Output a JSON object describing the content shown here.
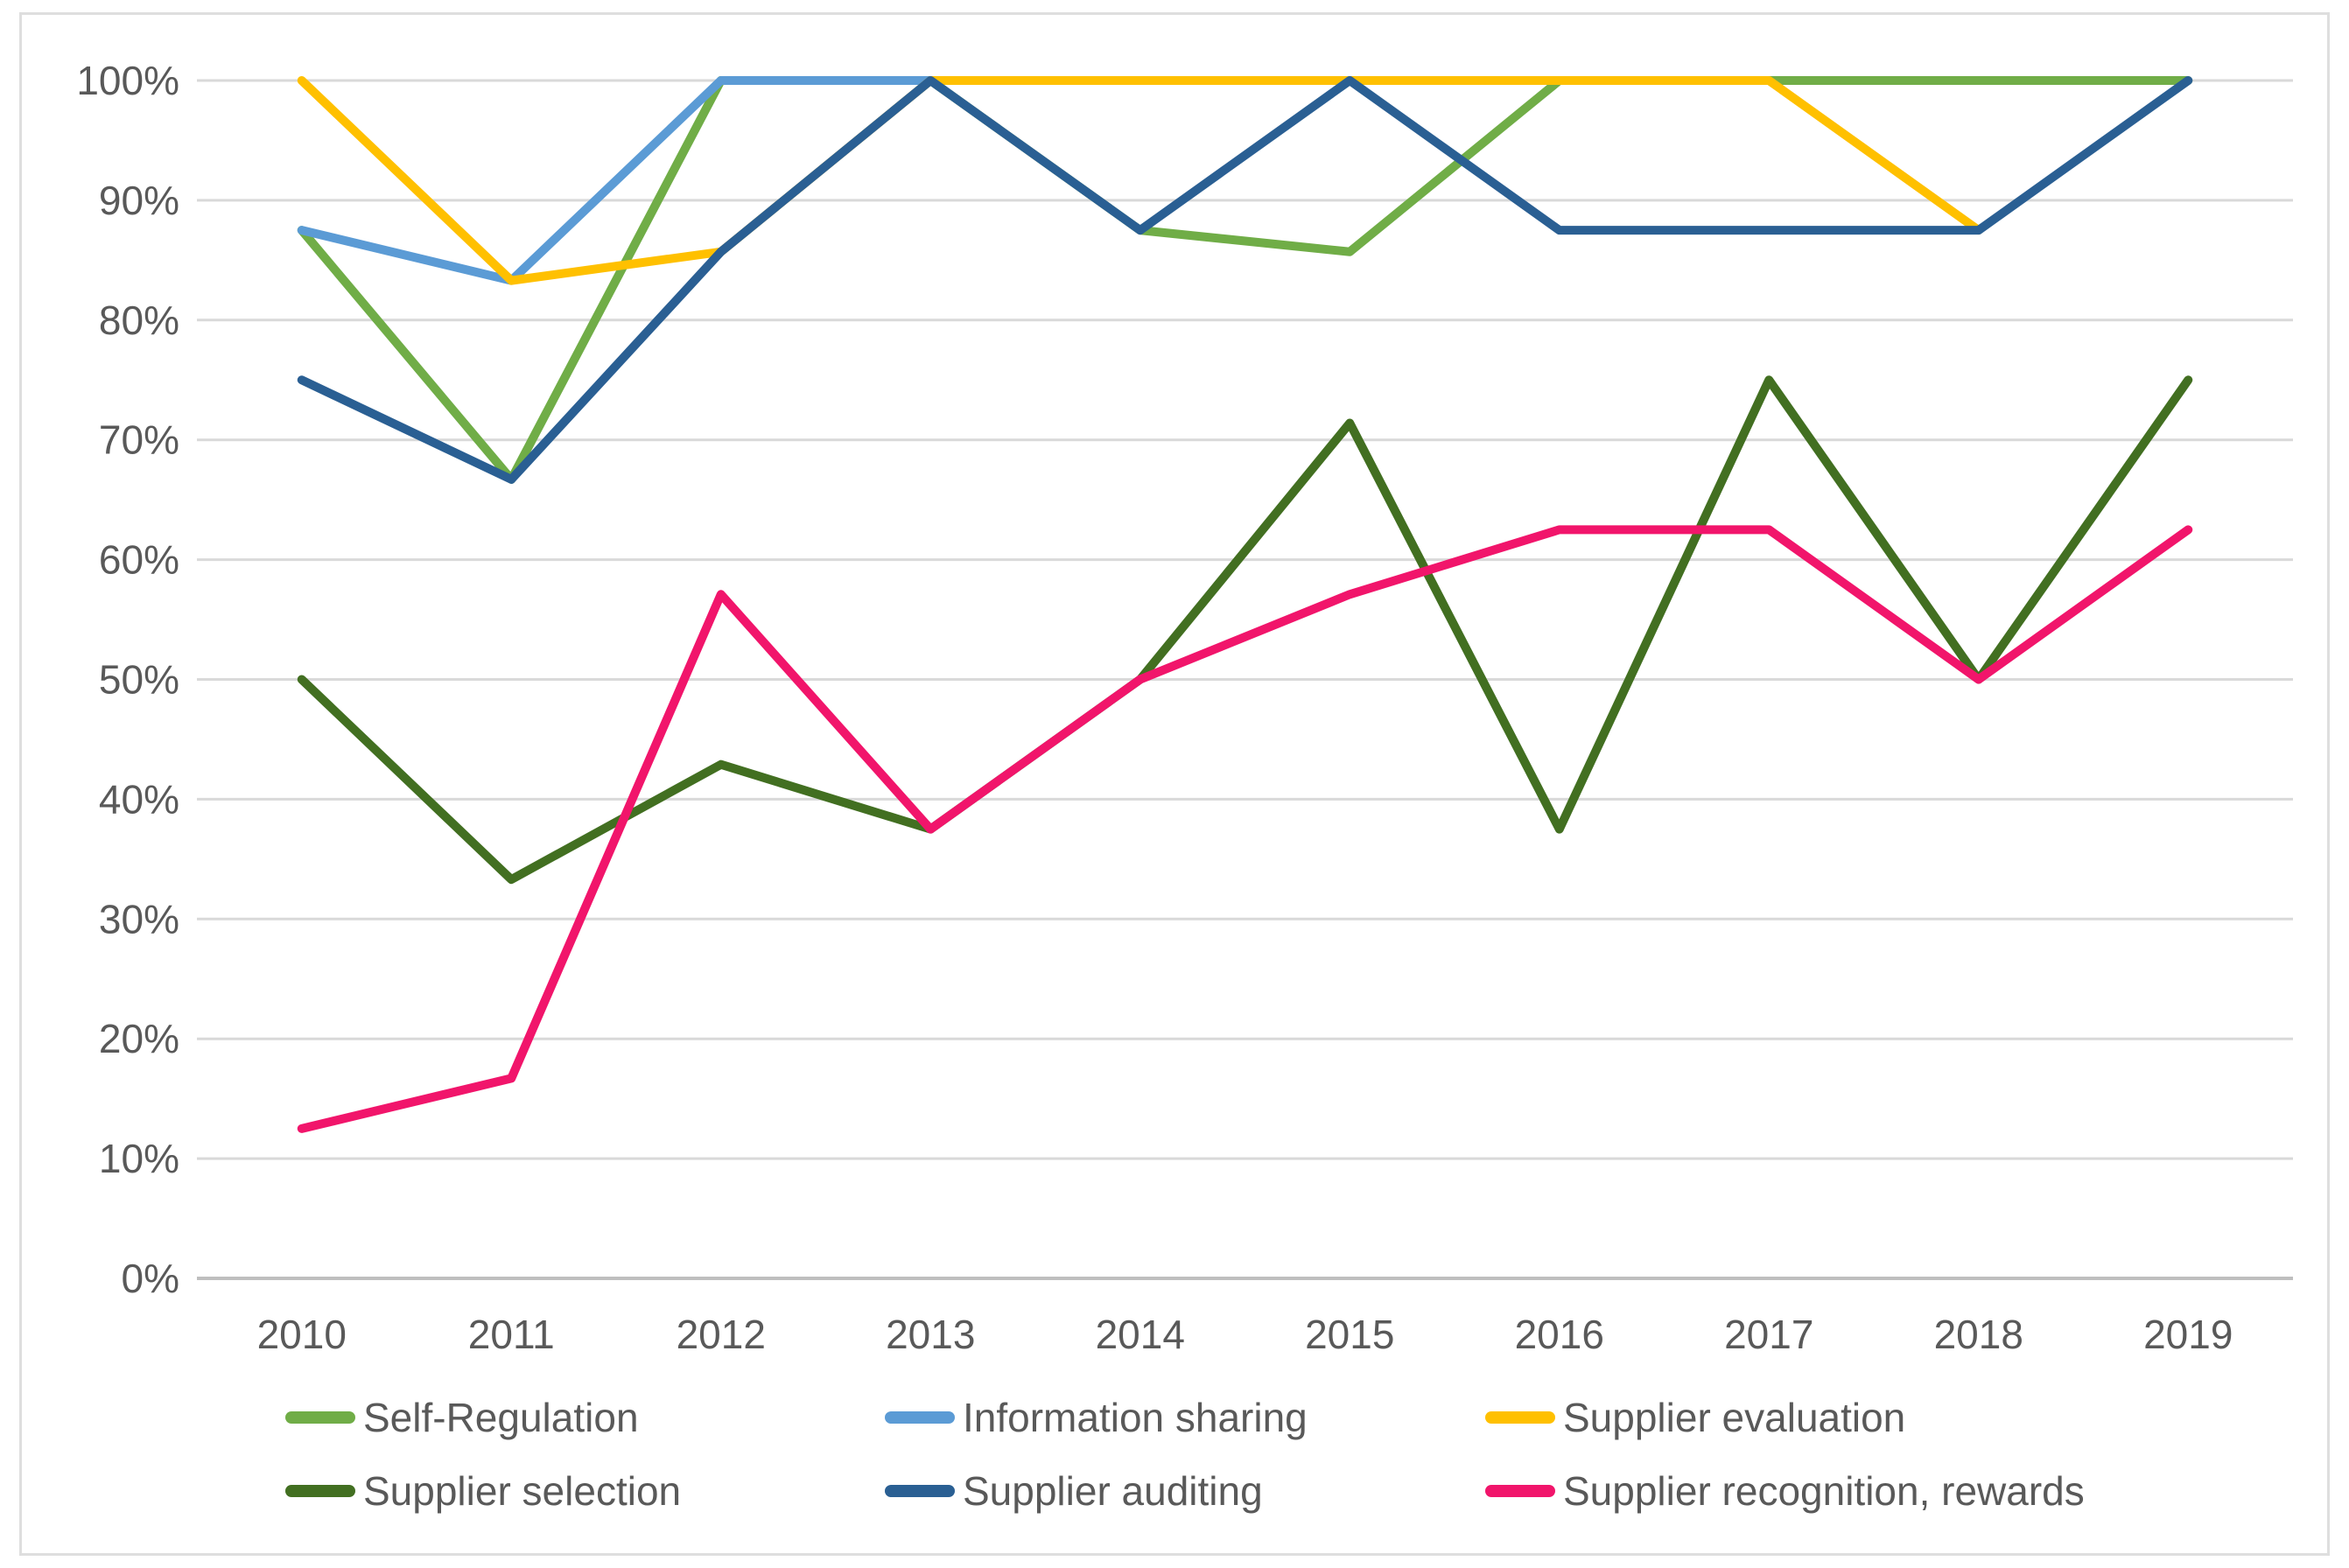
{
  "chart": {
    "background_color": "#FFFFFF",
    "frame_border_color": "#DEDEDE",
    "gridline_color": "#D9D9D9",
    "axis_line_color": "#BFBFBF",
    "text_color": "#595959"
  },
  "y_axis": {
    "tick_labels": [
      "100%",
      "90%",
      "80%",
      "70%",
      "60%",
      "50%",
      "40%",
      "30%",
      "20%",
      "10%",
      "0%"
    ]
  },
  "x_axis": {
    "tick_labels": [
      "2010",
      "2011",
      "2012",
      "2013",
      "2014",
      "2015",
      "2016",
      "2017",
      "2018",
      "2019"
    ]
  },
  "legend": {
    "position": "bottom",
    "rows": 2,
    "columns": 3
  },
  "chart_data": {
    "type": "line",
    "title": "",
    "xlabel": "",
    "ylabel": "",
    "x": [
      2010,
      2011,
      2012,
      2013,
      2014,
      2015,
      2016,
      2017,
      2018,
      2019
    ],
    "ylim": [
      0,
      100
    ],
    "y_unit": "percent",
    "grid": "horizontal",
    "legend_position": "bottom",
    "series": [
      {
        "name": "Self-Regulation",
        "color": "#70AD47",
        "values": [
          87.5,
          66.7,
          100,
          100,
          87.5,
          85.7,
          100,
          100,
          100,
          100
        ]
      },
      {
        "name": "Information sharing",
        "color": "#5B9BD5",
        "values": [
          87.5,
          83.3,
          100,
          100,
          null,
          null,
          null,
          null,
          null,
          null
        ]
      },
      {
        "name": "Supplier evaluation",
        "color": "#FFC000",
        "values": [
          100,
          83.3,
          85.7,
          100,
          100,
          100,
          100,
          100,
          87.5,
          null
        ]
      },
      {
        "name": "Supplier selection",
        "color": "#426F21",
        "values": [
          50,
          33.3,
          42.9,
          37.5,
          50,
          71.4,
          37.5,
          75,
          50,
          75
        ]
      },
      {
        "name": "Supplier auditing",
        "color": "#2A5F93",
        "values": [
          75,
          66.7,
          85.7,
          100,
          87.5,
          100,
          87.5,
          87.5,
          87.5,
          100
        ]
      },
      {
        "name": "Supplier recognition, rewards",
        "color": "#F1156B",
        "values": [
          12.5,
          16.7,
          57.1,
          37.5,
          50,
          57.1,
          62.5,
          62.5,
          50,
          62.5
        ]
      }
    ]
  }
}
